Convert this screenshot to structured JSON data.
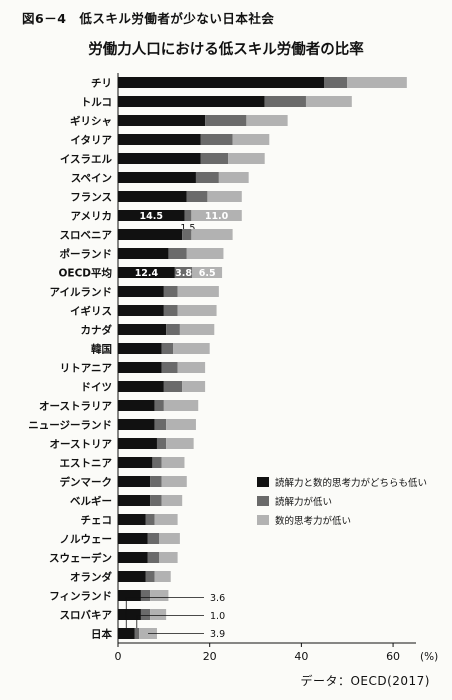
{
  "figure_label": "図6－4　低スキル労働者が少ない日本社会",
  "source_note": "データ：OECD(2017)",
  "chart_data": {
    "type": "bar",
    "orientation": "horizontal",
    "stacked": true,
    "title": "労働力人口における低スキル労働者の比率",
    "xlabel": "",
    "ylabel": "",
    "unit_label": "(%)",
    "xlim": [
      0,
      65
    ],
    "xticks": [
      0,
      20,
      40,
      60
    ],
    "legend_position": "right",
    "categories": [
      "チリ",
      "トルコ",
      "ギリシャ",
      "イタリア",
      "イスラエル",
      "スペイン",
      "フランス",
      "アメリカ",
      "スロベニア",
      "ポーランド",
      "OECD平均",
      "アイルランド",
      "イギリス",
      "カナダ",
      "韓国",
      "リトアニア",
      "ドイツ",
      "オーストラリア",
      "ニュージーランド",
      "オーストリア",
      "エストニア",
      "デンマーク",
      "ベルギー",
      "チェコ",
      "ノルウェー",
      "スウェーデン",
      "オランダ",
      "フィンランド",
      "スロバキア",
      "日本"
    ],
    "series": [
      {
        "name": "読解力と数的思考力がどちらも低い",
        "color": "#111111",
        "values": [
          45,
          32,
          19,
          18,
          18,
          17,
          15,
          14.5,
          14,
          11,
          12.4,
          10,
          10,
          10.5,
          9.5,
          9.5,
          10,
          8,
          8,
          8.5,
          7.5,
          7,
          7,
          6,
          6.5,
          6.5,
          6,
          5,
          5,
          3.6
        ]
      },
      {
        "name": "読解力が低い",
        "color": "#6a6a6a",
        "values": [
          5,
          9,
          9,
          7,
          6,
          5,
          4.5,
          1.5,
          2,
          4,
          3.8,
          3,
          3,
          3,
          2.5,
          3.5,
          4,
          2,
          2.5,
          2,
          2,
          2.5,
          2.5,
          2,
          2.5,
          2.5,
          2,
          2,
          2,
          1.0
        ]
      },
      {
        "name": "数的思考力が低い",
        "color": "#b2b2b2",
        "values": [
          13,
          10,
          9,
          8,
          8,
          6.5,
          7.5,
          11.0,
          9,
          8,
          6.5,
          9,
          8.5,
          7.5,
          8,
          6,
          5,
          7.5,
          6.5,
          6,
          5,
          5.5,
          4.5,
          5,
          4.5,
          4,
          3.5,
          4,
          3.5,
          3.9
        ]
      }
    ],
    "data_labels": [
      {
        "category": "アメリカ",
        "values": [
          "14.5",
          "1.5",
          "11.0"
        ]
      },
      {
        "category": "OECD平均",
        "values": [
          "12.4",
          "3.8",
          "6.5"
        ]
      },
      {
        "category": "日本",
        "values": [
          "3.6",
          "1.0",
          "3.9"
        ]
      }
    ]
  }
}
